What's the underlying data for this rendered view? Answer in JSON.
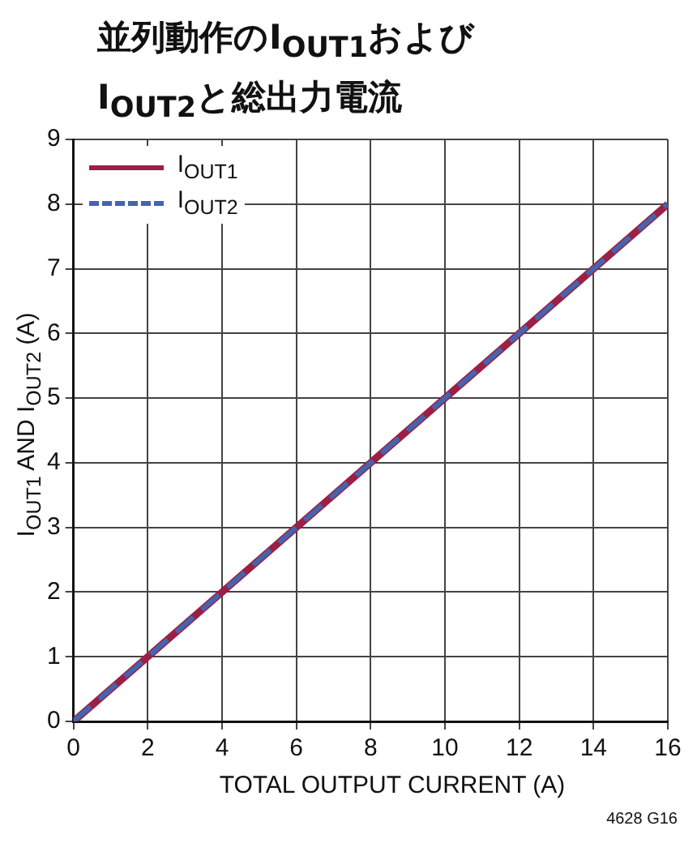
{
  "chart_data": {
    "type": "line",
    "title": "並列動作のI$_{OUT1}$および I$_{OUT2}$と総出力電流",
    "xlabel": "TOTAL OUTPUT CURRENT (A)",
    "ylabel": "I$_{OUT1}$ AND I$_{OUT2}$ (A)",
    "x": [
      0,
      16
    ],
    "series": [
      {
        "name": "I$_{OUT1}$",
        "color": "#9c1f45",
        "values": [
          0,
          8
        ],
        "line_style": "solid"
      },
      {
        "name": "I$_{OUT2}$",
        "color": "#4464ae",
        "values": [
          0,
          8
        ],
        "line_style": "dashed"
      }
    ],
    "xlim": [
      0,
      16
    ],
    "xticks": [
      0,
      2,
      4,
      6,
      8,
      10,
      12,
      14,
      16
    ],
    "ylim": [
      0,
      9
    ],
    "yticks": [
      0,
      1,
      2,
      3,
      4,
      5,
      6,
      7,
      8,
      9
    ],
    "grid": true,
    "legend": "top left",
    "marker": "none",
    "annotations": [
      "4628 G16"
    ]
  }
}
